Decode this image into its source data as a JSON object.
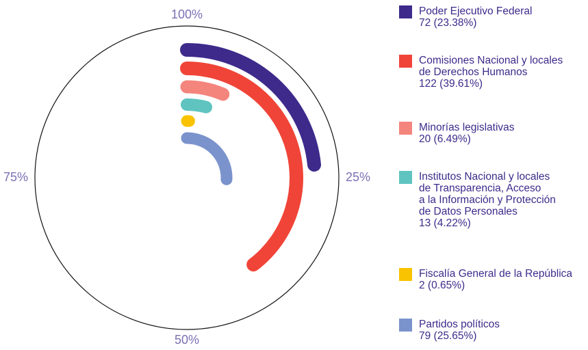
{
  "chart_data": {
    "type": "radial_bar",
    "rlim": [
      0,
      100
    ],
    "rticks": [
      {
        "value": 100,
        "label": "100%"
      },
      {
        "value": 25,
        "label": "25%"
      },
      {
        "value": 50,
        "label": "50%"
      },
      {
        "value": 75,
        "label": "75%"
      }
    ],
    "series": [
      {
        "name": "Poder Ejecutivo Federal",
        "color": "#3d2a8a",
        "values": [
          23.38
        ],
        "value_labels": [
          "72 (23.38%)"
        ]
      },
      {
        "name": "Comisiones Nacional y locales\nde Derechos Humanos",
        "color": "#f04438",
        "values": [
          39.61
        ],
        "value_labels": [
          "122 (39.61%)"
        ]
      },
      {
        "name": "Minorías legislativas",
        "color": "#f4857c",
        "values": [
          6.49
        ],
        "value_labels": [
          "20 (6.49%)"
        ]
      },
      {
        "name": "Institutos Nacional y locales\nde Transparencia, Acceso\na la Información y Protección\nde Datos Personales",
        "color": "#5fc4bf",
        "values": [
          4.22
        ],
        "value_labels": [
          "13 (4.22%)"
        ]
      },
      {
        "name": "Fiscalía General de la República",
        "color": "#f9c300",
        "values": [
          0.65
        ],
        "value_labels": [
          "2 (0.65%)"
        ]
      },
      {
        "name": "Partidos políticos",
        "color": "#7b93cc",
        "values": [
          25.65
        ],
        "value_labels": [
          "79 (25.65%)"
        ]
      }
    ]
  }
}
